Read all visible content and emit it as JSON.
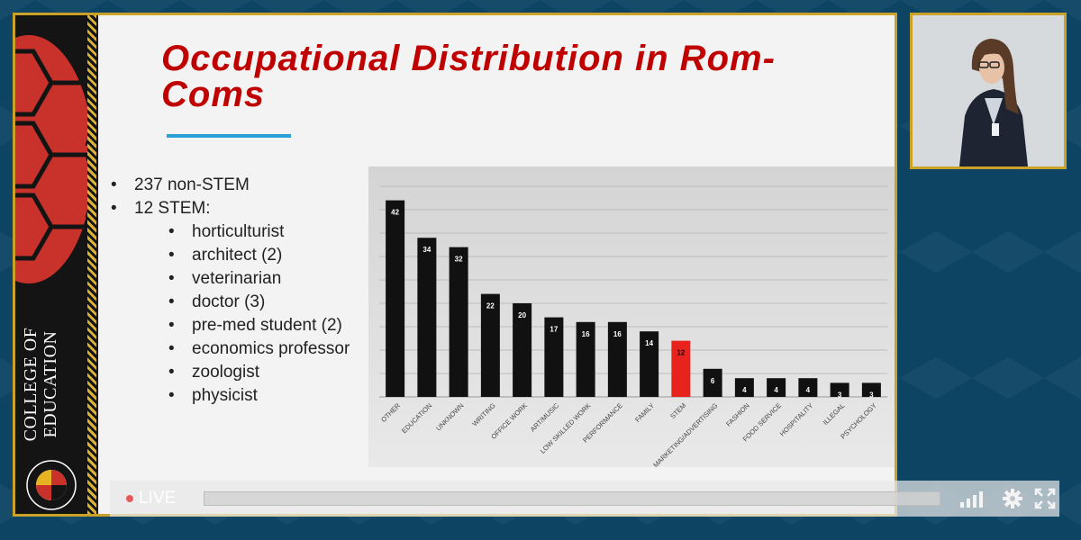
{
  "slide": {
    "title": "Occupational Distribution in Rom-Coms",
    "bullets": [
      {
        "text": "237 non-STEM"
      },
      {
        "text": "12 STEM:"
      }
    ],
    "sub_bullets": [
      "horticulturist",
      "architect (2)",
      "veterinarian",
      "doctor (3)",
      "pre-med student (2)",
      "economics professor",
      "zoologist",
      "physicist"
    ],
    "sidebar": {
      "college_line1": "COLLEGE OF",
      "college_line2": "EDUCATION"
    },
    "colors": {
      "accent_red": "#c00000",
      "highlight_bar": "#e8231e",
      "bar": "#111111",
      "rule_blue": "#2aa0d8",
      "frame_gold": "#c9a227"
    }
  },
  "chart_data": {
    "type": "bar",
    "categories": [
      "OTHER",
      "EDUCATION",
      "UNKNOWN",
      "WRITING",
      "OFFICE WORK",
      "ART/MUSIC",
      "LOW SKILLED WORK",
      "PERFORMANCE",
      "FAMILY",
      "STEM",
      "MARKETING/ADVERTISING",
      "FASHION",
      "FOOD SERVICE",
      "HOSPITALITY",
      "ILLEGAL",
      "PSYCHOLOGY"
    ],
    "values": [
      42,
      34,
      32,
      22,
      20,
      17,
      16,
      16,
      14,
      12,
      6,
      4,
      4,
      4,
      3,
      3
    ],
    "highlight": "STEM",
    "ylim": [
      0,
      45
    ],
    "grid": true
  },
  "player": {
    "live_label": "LIVE",
    "icons": [
      "live-dot-icon",
      "signal-icon",
      "gear-icon",
      "expand-icon"
    ]
  }
}
